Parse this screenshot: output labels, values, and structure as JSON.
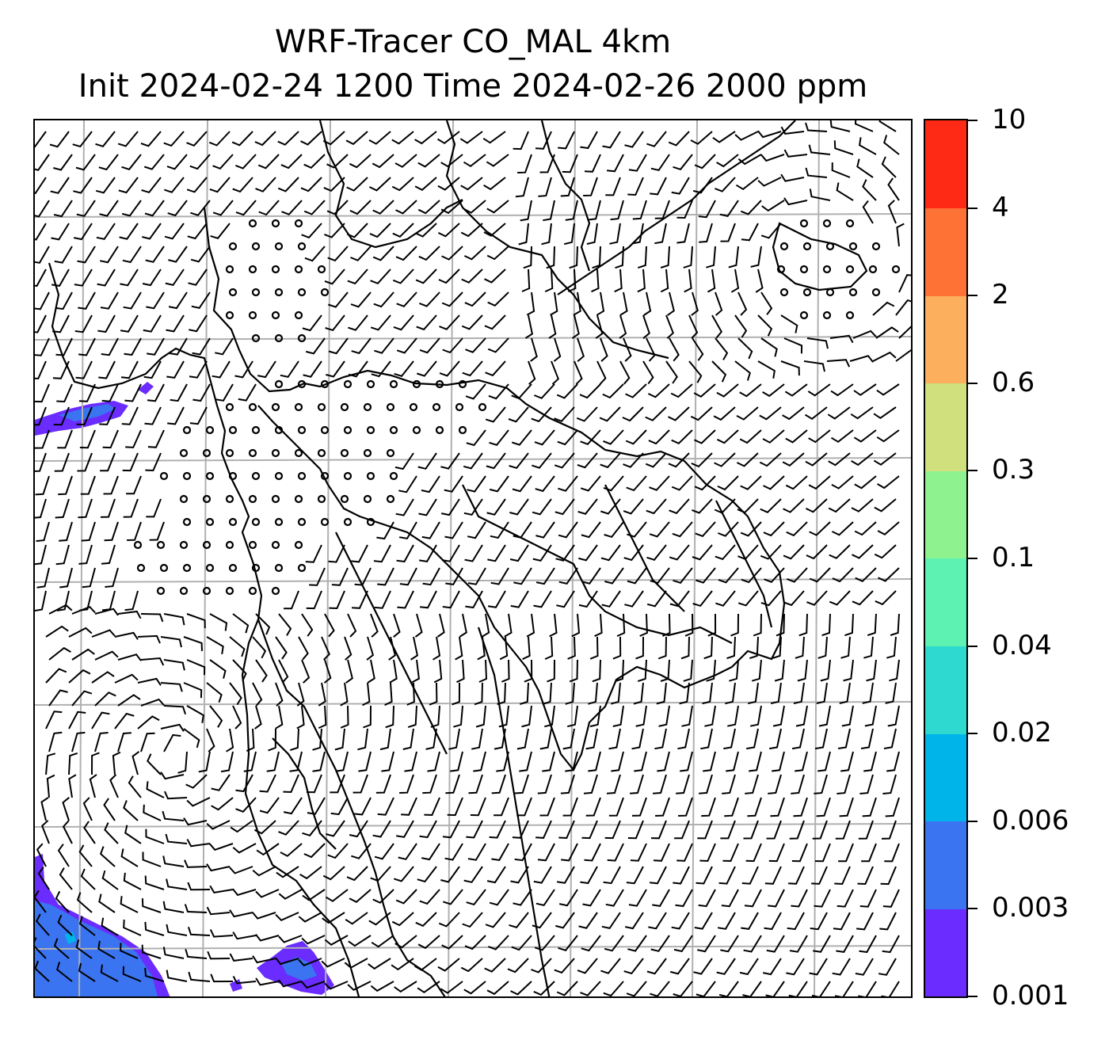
{
  "title": {
    "line1": "WRF-Tracer CO_MAL 4km",
    "line2": "Init 2024-02-24 1200 Time 2024-02-26 2000 ppm"
  },
  "map": {
    "field": "CO_MAL tracer concentration",
    "overlay": "wind barbs",
    "gridlines": true,
    "colors": {
      "land_outline": "#000000",
      "grid": "#b0b0b0"
    }
  },
  "colorbar": {
    "levels": [
      "0.001",
      "0.003",
      "0.006",
      "0.02",
      "0.04",
      "0.1",
      "0.3",
      "0.6",
      "2",
      "4",
      "10"
    ],
    "colors": [
      "#6a2cff",
      "#3a74f0",
      "#00b4ea",
      "#2ed9cf",
      "#5ef2b2",
      "#8ef28e",
      "#cfe07c",
      "#fcb05e",
      "#ff7236",
      "#ff2a16"
    ]
  }
}
